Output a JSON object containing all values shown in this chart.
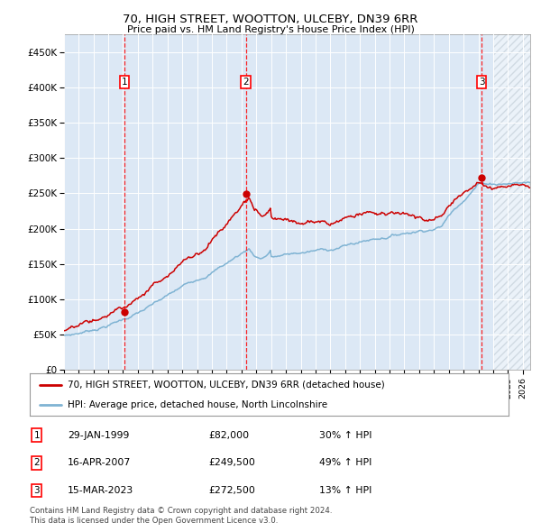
{
  "title": "70, HIGH STREET, WOOTTON, ULCEBY, DN39 6RR",
  "subtitle": "Price paid vs. HM Land Registry's House Price Index (HPI)",
  "xlim_start": 1995.0,
  "xlim_end": 2026.5,
  "ylim": [
    0,
    475000
  ],
  "yticks": [
    0,
    50000,
    100000,
    150000,
    200000,
    250000,
    300000,
    350000,
    400000,
    450000
  ],
  "ytick_labels": [
    "£0",
    "£50K",
    "£100K",
    "£150K",
    "£200K",
    "£250K",
    "£300K",
    "£350K",
    "£400K",
    "£450K"
  ],
  "property_color": "#cc0000",
  "hpi_color": "#7fb3d3",
  "sale_dates": [
    1999.08,
    2007.29,
    2023.21
  ],
  "sale_prices": [
    82000,
    249500,
    272500
  ],
  "sale_labels": [
    "1",
    "2",
    "3"
  ],
  "legend_property": "70, HIGH STREET, WOOTTON, ULCEBY, DN39 6RR (detached house)",
  "legend_hpi": "HPI: Average price, detached house, North Lincolnshire",
  "table_rows": [
    {
      "num": "1",
      "date": "29-JAN-1999",
      "price": "£82,000",
      "hpi": "30% ↑ HPI"
    },
    {
      "num": "2",
      "date": "16-APR-2007",
      "price": "£249,500",
      "hpi": "49% ↑ HPI"
    },
    {
      "num": "3",
      "date": "15-MAR-2023",
      "price": "£272,500",
      "hpi": "13% ↑ HPI"
    }
  ],
  "footer": "Contains HM Land Registry data © Crown copyright and database right 2024.\nThis data is licensed under the Open Government Licence v3.0.",
  "background_color": "#ffffff",
  "plot_bg_color": "#dce8f5",
  "hatch_region_start": 2024.0,
  "grid_color": "#ffffff"
}
